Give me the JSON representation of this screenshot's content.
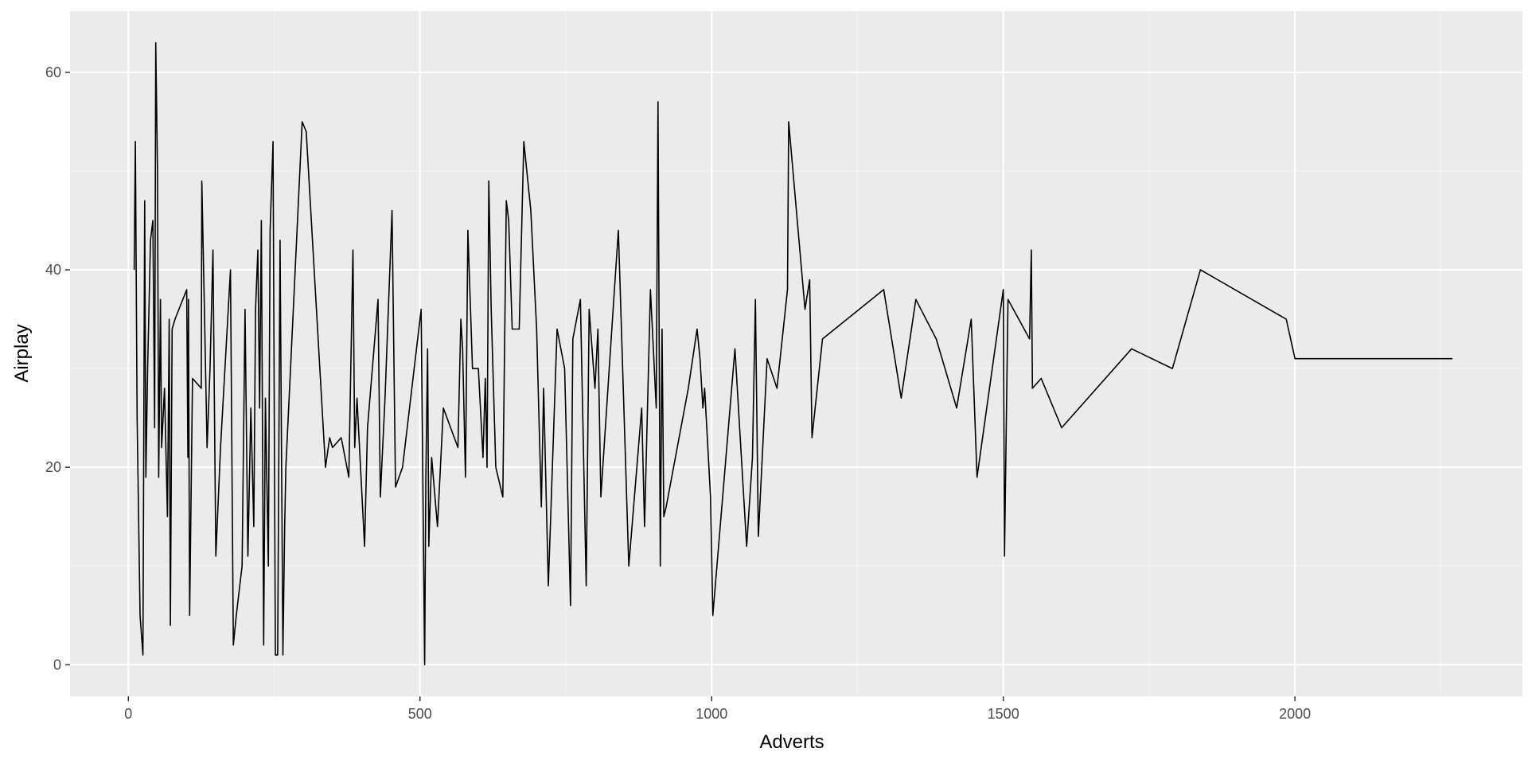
{
  "chart_data": {
    "type": "line",
    "title": "",
    "xlabel": "Adverts",
    "ylabel": "Airplay",
    "xlim": [
      -100,
      2390
    ],
    "ylim": [
      -3.2,
      66.2
    ],
    "x_ticks": [
      0,
      500,
      1000,
      1500,
      2000
    ],
    "y_ticks": [
      0,
      20,
      40,
      60
    ],
    "grid": true,
    "legend": "none",
    "colors": {
      "panel_background": "#EBEBEB",
      "major_grid": "#FFFFFF",
      "minor_grid": "#F5F5F5",
      "line": "#000000",
      "tick_text": "#4D4D4D",
      "axis_title_text": "#000000"
    },
    "series": [
      {
        "x": [
          10,
          12,
          15,
          20,
          25,
          28,
          30,
          33,
          38,
          42,
          45,
          47,
          50,
          52,
          55,
          57,
          62,
          67,
          70,
          72,
          75,
          80,
          100,
          102,
          103,
          105,
          110,
          125,
          126,
          130,
          135,
          140,
          145,
          150,
          158,
          175,
          180,
          185,
          195,
          200,
          205,
          210,
          215,
          218,
          222,
          225,
          228,
          232,
          235,
          240,
          243,
          248,
          252,
          256,
          260,
          265,
          268,
          270,
          298,
          305,
          338,
          345,
          350,
          365,
          378,
          385,
          388,
          392,
          398,
          405,
          410,
          428,
          432,
          440,
          452,
          458,
          470,
          502,
          508,
          510,
          513,
          515,
          520,
          530,
          540,
          565,
          570,
          573,
          578,
          582,
          590,
          600,
          608,
          612,
          615,
          618,
          622,
          630,
          642,
          648,
          652,
          658,
          670,
          678,
          690,
          700,
          708,
          712,
          720,
          735,
          748,
          758,
          762,
          775,
          785,
          790,
          800,
          805,
          810,
          830,
          840,
          858,
          880,
          885,
          895,
          905,
          908,
          912,
          915,
          918,
          922,
          960,
          975,
          980,
          985,
          988,
          998,
          1002,
          1040,
          1060,
          1070,
          1075,
          1080,
          1095,
          1112,
          1130,
          1132,
          1160,
          1168,
          1172,
          1190,
          1295,
          1325,
          1350,
          1385,
          1420,
          1445,
          1455,
          1500,
          1502,
          1508,
          1545,
          1548,
          1550,
          1565,
          1600,
          1720,
          1790,
          1838,
          1985,
          2000,
          2270
        ],
        "y": [
          40,
          53,
          25,
          5,
          1,
          47,
          19,
          30,
          43,
          45,
          24,
          63,
          50,
          19,
          37,
          22,
          28,
          15,
          35,
          4,
          34,
          35,
          38,
          21,
          37,
          5,
          29,
          28,
          49,
          37,
          22,
          30,
          42,
          11,
          22,
          40,
          2,
          5,
          10,
          36,
          11,
          26,
          14,
          36,
          42,
          26,
          45,
          2,
          27,
          10,
          44,
          53,
          1,
          1,
          43,
          1,
          14,
          20,
          55,
          54,
          20,
          23,
          22,
          23,
          19,
          42,
          22,
          27,
          20,
          12,
          24,
          37,
          17,
          27,
          46,
          18,
          20,
          36,
          0,
          19,
          32,
          12,
          21,
          14,
          26,
          22,
          35,
          32,
          19,
          44,
          30,
          30,
          21,
          29,
          20,
          49,
          36,
          20,
          17,
          47,
          45,
          34,
          34,
          53,
          46,
          34,
          16,
          28,
          8,
          34,
          30,
          6,
          33,
          37,
          8,
          36,
          28,
          34,
          17,
          35,
          44,
          10,
          26,
          14,
          38,
          26,
          57,
          10,
          34,
          15,
          16,
          28,
          34,
          31,
          26,
          28,
          17,
          5,
          32,
          12,
          21,
          37,
          13,
          31,
          28,
          38,
          55,
          36,
          39,
          23,
          33,
          38,
          27,
          37,
          33,
          26,
          35,
          19,
          38,
          11,
          37,
          33,
          42,
          28,
          29,
          24,
          32,
          30,
          40,
          35,
          31,
          31
        ]
      }
    ]
  }
}
